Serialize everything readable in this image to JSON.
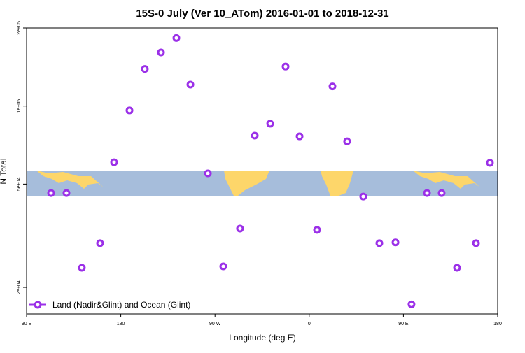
{
  "chart_data": {
    "type": "scatter",
    "title": "15S-0 July (Ver 10_ATom)   2016-01-01 to 2018-12-31",
    "x_label": "Longitude (deg E)",
    "y_label": "N Total",
    "ylog": true,
    "xlim": [
      90,
      540
    ],
    "ylim": [
      15800,
      200000
    ],
    "xticks": [
      {
        "value": 90,
        "label": "90 E"
      },
      {
        "value": 180,
        "label": "180"
      },
      {
        "value": 270,
        "label": "90 W"
      },
      {
        "value": 360,
        "label": "0"
      },
      {
        "value": 450,
        "label": "90 E"
      },
      {
        "value": 540,
        "label": "180"
      }
    ],
    "yticks": [
      {
        "value": 20000,
        "label": "2e+04"
      },
      {
        "value": 50000,
        "label": "5e+04"
      },
      {
        "value": 100000,
        "label": "1e+05"
      },
      {
        "value": 200000,
        "label": "2e+05"
      }
    ],
    "legend_position": "bottom-left",
    "series": [
      {
        "name": "Land (Nadir&Glint) and Ocean (Glint)",
        "color": "#9b30e8",
        "x": [
          113.4,
          128.1,
          142.8,
          160.2,
          173.6,
          188.3,
          203.0,
          218.4,
          233.1,
          246.5,
          263.2,
          277.9,
          293.9,
          308.0,
          322.7,
          337.4,
          350.8,
          367.5,
          382.2,
          396.2,
          411.6,
          427.0,
          442.4,
          457.7,
          472.5,
          486.5,
          501.2,
          519.3,
          532.6
        ],
        "values": [
          46200,
          46200,
          23800,
          29600,
          60700,
          96200,
          139000,
          161000,
          183000,
          121000,
          55000,
          24100,
          33700,
          76900,
          85500,
          142000,
          76400,
          33300,
          119000,
          73100,
          44800,
          29600,
          29800,
          17200,
          46200,
          46200,
          23800,
          29600,
          60400
        ]
      }
    ]
  }
}
